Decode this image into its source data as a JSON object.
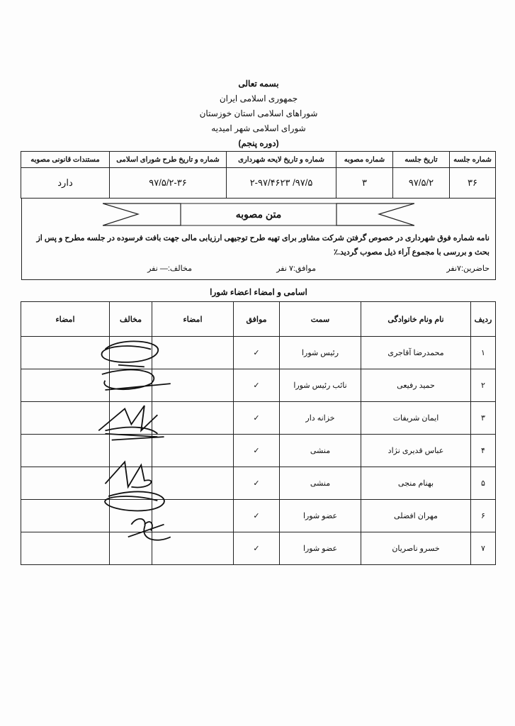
{
  "header": {
    "basmala": "بسمه تعالی",
    "country": "جمهوری اسلامی ایران",
    "province": "شوراهای اسلامی استان خوزستان",
    "city": "شورای اسلامی شهر امیدیه",
    "term": "(دوره پنجم)"
  },
  "info_table": {
    "headers": [
      "شماره جلسه",
      "تاریخ جلسه",
      "شماره مصوبه",
      "شماره و تاریخ لایحه شهرداری",
      "شماره و تاریخ طرح شورای اسلامی",
      "مستندات قانونی مصوبه"
    ],
    "values": [
      "۳۶",
      "۹۷/۵/۲",
      "۳",
      "۹۷/۵/ ۲-۹۷/۴۶۲۳",
      "۹۷/۵/۲-۳۶",
      "دارد"
    ]
  },
  "resolution": {
    "title": "متن مصوبه",
    "text": "نامه شماره فوق شهرداری در خصوص گرفتن شرکت مشاور برای تهیه طرح توجیهی ارزیابی مالی جهت بافت فرسوده در جلسه مطرح و پس از بحث و بررسی با مجموع آراء ذیل مصوب گردید.٪",
    "present": "حاضرین:۷نفر",
    "agree": "موافق:۷ نفر",
    "oppose": "مخالف:— نفر"
  },
  "members": {
    "title": "اسامی و امضاء اعضاء شورا",
    "headers": [
      "ردیف",
      "نام ونام خانوادگی",
      "سمت",
      "موافق",
      "امضاء",
      "مخالف",
      "امضاء"
    ],
    "rows": [
      {
        "n": "۱",
        "name": "محمدرضا آقاجری",
        "role": "رئیس شورا",
        "agree": "✓"
      },
      {
        "n": "۲",
        "name": "حمید رفیعی",
        "role": "نائب رئیس شورا",
        "agree": "✓"
      },
      {
        "n": "۳",
        "name": "ایمان شریفات",
        "role": "خزانه دار",
        "agree": "✓"
      },
      {
        "n": "۴",
        "name": "عباس قدیری نژاد",
        "role": "منشی",
        "agree": "✓"
      },
      {
        "n": "۵",
        "name": "بهنام منجی",
        "role": "منشی",
        "agree": "✓"
      },
      {
        "n": "۶",
        "name": "مهران افضلی",
        "role": "عضو شورا",
        "agree": "✓"
      },
      {
        "n": "۷",
        "name": "خسرو ناصریان",
        "role": "عضو شورا",
        "agree": "✓"
      }
    ]
  }
}
